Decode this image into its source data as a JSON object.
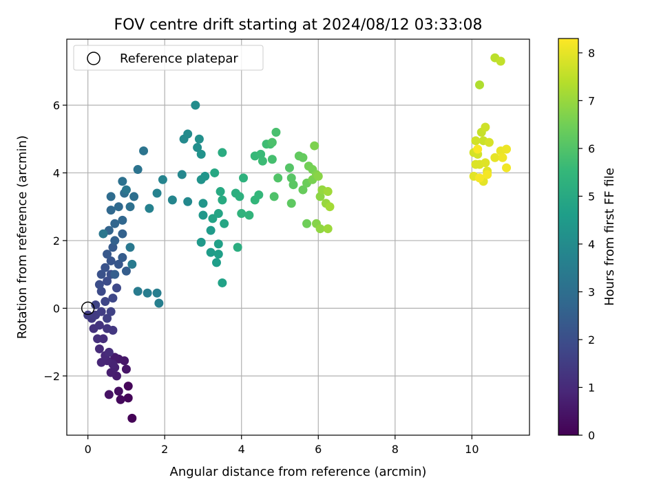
{
  "chart_data": {
    "type": "scatter",
    "title": "FOV centre drift starting at 2024/08/12 03:33:08",
    "xlabel": "Angular distance from reference (arcmin)",
    "ylabel": "Rotation from reference (arcmin)",
    "xlim": [
      -0.55,
      11.5
    ],
    "ylim": [
      -3.75,
      7.95
    ],
    "xticks": [
      0,
      2,
      4,
      6,
      8,
      10
    ],
    "yticks": [
      -2,
      0,
      2,
      4,
      6
    ],
    "xtick_labels": [
      "0",
      "2",
      "4",
      "6",
      "8",
      "10"
    ],
    "ytick_labels": [
      "−2",
      "0",
      "2",
      "4",
      "6"
    ],
    "grid": true,
    "legend": {
      "placement": "top-left",
      "entries": [
        {
          "label": "Reference platepar",
          "marker": "open-circle"
        }
      ]
    },
    "reference_point": {
      "x": 0.0,
      "y": 0.0
    },
    "colorbar": {
      "label": "Hours from first FF file",
      "colormap": "viridis",
      "range": [
        0,
        8.3
      ],
      "ticks": [
        0,
        1,
        2,
        3,
        4,
        5,
        6,
        7,
        8
      ],
      "tick_labels": [
        "0",
        "1",
        "2",
        "3",
        "4",
        "5",
        "6",
        "7",
        "8"
      ],
      "stops": [
        "#440154",
        "#482878",
        "#3e4989",
        "#31688e",
        "#26828e",
        "#1f9e89",
        "#35b779",
        "#6ece58",
        "#b5de2b",
        "#fde725"
      ]
    },
    "series": [
      {
        "marker": "filled-circle",
        "points": [
          [
            1.15,
            -3.25,
            0.05
          ],
          [
            1.05,
            -2.65,
            0.1
          ],
          [
            1.05,
            -2.3,
            0.12
          ],
          [
            0.85,
            -2.7,
            0.2
          ],
          [
            0.8,
            -2.45,
            0.3
          ],
          [
            0.55,
            -2.55,
            0.4
          ],
          [
            1.0,
            -1.8,
            0.45
          ],
          [
            0.95,
            -1.55,
            0.5
          ],
          [
            0.8,
            -1.5,
            0.55
          ],
          [
            0.7,
            -1.45,
            0.6
          ],
          [
            0.75,
            -2.0,
            0.65
          ],
          [
            0.6,
            -1.9,
            0.7
          ],
          [
            0.7,
            -1.75,
            0.75
          ],
          [
            0.65,
            -1.65,
            0.8
          ],
          [
            0.5,
            -1.55,
            0.85
          ],
          [
            0.35,
            -1.6,
            0.9
          ],
          [
            0.45,
            -1.4,
            0.95
          ],
          [
            0.3,
            -1.2,
            1.0
          ],
          [
            0.55,
            -1.3,
            1.05
          ],
          [
            0.4,
            -0.9,
            1.1
          ],
          [
            0.25,
            -0.9,
            1.15
          ],
          [
            0.15,
            -0.6,
            1.2
          ],
          [
            0.3,
            -0.5,
            1.25
          ],
          [
            0.5,
            -0.6,
            1.3
          ],
          [
            0.65,
            -0.65,
            1.35
          ],
          [
            0.1,
            -0.3,
            1.4
          ],
          [
            0.2,
            -0.2,
            1.45
          ],
          [
            0.0,
            -0.2,
            1.5
          ],
          [
            0.35,
            -0.1,
            1.55
          ],
          [
            0.5,
            -0.3,
            1.6
          ],
          [
            0.6,
            -0.1,
            1.65
          ],
          [
            0.2,
            0.1,
            1.7
          ],
          [
            0.45,
            0.2,
            1.75
          ],
          [
            0.65,
            0.3,
            1.8
          ],
          [
            0.75,
            0.6,
            1.85
          ],
          [
            0.35,
            0.5,
            1.9
          ],
          [
            0.5,
            0.8,
            1.95
          ],
          [
            0.3,
            0.7,
            2.0
          ],
          [
            0.6,
            1.0,
            2.05
          ],
          [
            0.35,
            1.0,
            2.1
          ],
          [
            0.45,
            1.2,
            2.15
          ],
          [
            0.6,
            1.4,
            2.2
          ],
          [
            0.8,
            1.3,
            2.25
          ],
          [
            0.5,
            1.6,
            2.3
          ],
          [
            0.65,
            1.8,
            2.35
          ],
          [
            0.9,
            1.5,
            2.4
          ],
          [
            1.0,
            1.1,
            2.45
          ],
          [
            0.7,
            1.0,
            2.5
          ],
          [
            0.7,
            2.0,
            2.55
          ],
          [
            0.9,
            2.2,
            2.6
          ],
          [
            0.55,
            2.3,
            2.65
          ],
          [
            0.7,
            2.5,
            2.7
          ],
          [
            0.9,
            2.6,
            2.75
          ],
          [
            0.6,
            2.9,
            2.8
          ],
          [
            0.8,
            3.0,
            2.85
          ],
          [
            0.6,
            3.3,
            2.9
          ],
          [
            0.95,
            3.4,
            2.95
          ],
          [
            1.2,
            3.3,
            3.0
          ],
          [
            1.1,
            3.0,
            3.05
          ],
          [
            0.9,
            3.75,
            3.1
          ],
          [
            1.3,
            4.1,
            3.15
          ],
          [
            1.45,
            4.65,
            3.2
          ],
          [
            1.0,
            3.5,
            3.25
          ],
          [
            0.4,
            2.2,
            3.3
          ],
          [
            1.1,
            1.8,
            3.35
          ],
          [
            1.15,
            1.3,
            3.4
          ],
          [
            1.3,
            0.5,
            3.45
          ],
          [
            1.55,
            0.45,
            3.5
          ],
          [
            1.8,
            0.45,
            3.55
          ],
          [
            1.85,
            0.15,
            3.6
          ],
          [
            1.6,
            2.95,
            3.65
          ],
          [
            1.8,
            3.4,
            3.7
          ],
          [
            1.95,
            3.8,
            3.75
          ],
          [
            2.2,
            3.2,
            3.8
          ],
          [
            2.45,
            3.95,
            3.85
          ],
          [
            2.6,
            3.15,
            3.9
          ],
          [
            2.5,
            5.0,
            3.95
          ],
          [
            2.6,
            5.15,
            4.0
          ],
          [
            2.8,
            6.0,
            4.05
          ],
          [
            2.85,
            4.75,
            4.1
          ],
          [
            2.9,
            5.0,
            4.15
          ],
          [
            2.95,
            4.55,
            4.2
          ],
          [
            2.95,
            3.8,
            4.25
          ],
          [
            3.05,
            3.9,
            4.3
          ],
          [
            3.0,
            3.1,
            4.35
          ],
          [
            3.0,
            2.75,
            4.4
          ],
          [
            2.95,
            1.95,
            4.45
          ],
          [
            3.2,
            2.3,
            4.5
          ],
          [
            3.2,
            1.65,
            4.55
          ],
          [
            3.35,
            1.35,
            4.6
          ],
          [
            3.4,
            1.6,
            4.65
          ],
          [
            3.4,
            1.9,
            4.7
          ],
          [
            3.5,
            0.75,
            4.75
          ],
          [
            3.25,
            2.65,
            4.8
          ],
          [
            3.4,
            2.8,
            4.85
          ],
          [
            3.55,
            2.5,
            4.9
          ],
          [
            3.3,
            4.0,
            4.95
          ],
          [
            3.45,
            3.45,
            5.0
          ],
          [
            3.5,
            3.2,
            5.05
          ],
          [
            3.5,
            4.6,
            5.1
          ],
          [
            3.9,
            1.8,
            5.15
          ],
          [
            3.85,
            3.4,
            5.2
          ],
          [
            3.95,
            3.3,
            5.25
          ],
          [
            4.05,
            3.85,
            5.3
          ],
          [
            4.0,
            2.8,
            5.35
          ],
          [
            4.2,
            2.75,
            5.4
          ],
          [
            4.35,
            3.2,
            5.45
          ],
          [
            4.45,
            3.35,
            5.5
          ],
          [
            4.35,
            4.5,
            5.55
          ],
          [
            4.5,
            4.55,
            5.6
          ],
          [
            4.55,
            4.35,
            5.65
          ],
          [
            4.65,
            4.85,
            5.7
          ],
          [
            4.75,
            4.85,
            5.75
          ],
          [
            4.8,
            4.4,
            5.8
          ],
          [
            4.9,
            5.2,
            5.85
          ],
          [
            4.8,
            4.9,
            5.9
          ],
          [
            4.85,
            3.3,
            5.95
          ],
          [
            4.95,
            3.85,
            6.0
          ],
          [
            5.25,
            4.15,
            6.05
          ],
          [
            5.3,
            3.85,
            6.1
          ],
          [
            5.35,
            3.65,
            6.15
          ],
          [
            5.3,
            3.1,
            6.2
          ],
          [
            5.5,
            4.5,
            6.25
          ],
          [
            5.6,
            4.45,
            6.3
          ],
          [
            5.6,
            3.5,
            6.35
          ],
          [
            5.7,
            3.7,
            6.4
          ],
          [
            5.7,
            2.5,
            6.45
          ],
          [
            5.75,
            4.2,
            6.5
          ],
          [
            5.85,
            4.1,
            6.55
          ],
          [
            5.85,
            3.8,
            6.6
          ],
          [
            5.9,
            4.8,
            6.65
          ],
          [
            5.95,
            3.95,
            6.7
          ],
          [
            5.95,
            2.5,
            6.75
          ],
          [
            6.0,
            3.9,
            6.8
          ],
          [
            6.05,
            3.3,
            6.85
          ],
          [
            6.05,
            2.35,
            6.9
          ],
          [
            6.1,
            3.5,
            6.95
          ],
          [
            6.2,
            3.1,
            7.0
          ],
          [
            6.25,
            2.35,
            7.05
          ],
          [
            6.25,
            3.45,
            7.1
          ],
          [
            6.3,
            3.0,
            7.15
          ],
          [
            10.2,
            6.6,
            7.3
          ],
          [
            10.6,
            7.4,
            7.45
          ],
          [
            10.75,
            7.3,
            7.55
          ],
          [
            10.25,
            5.2,
            7.6
          ],
          [
            10.3,
            4.95,
            7.65
          ],
          [
            10.35,
            5.35,
            7.7
          ],
          [
            10.1,
            4.95,
            7.72
          ],
          [
            10.15,
            4.55,
            7.75
          ],
          [
            10.05,
            4.6,
            7.78
          ],
          [
            10.45,
            4.9,
            7.8
          ],
          [
            10.2,
            4.25,
            7.85
          ],
          [
            10.1,
            4.25,
            7.87
          ],
          [
            10.35,
            4.3,
            7.9
          ],
          [
            10.4,
            4.05,
            7.93
          ],
          [
            10.05,
            3.9,
            7.95
          ],
          [
            10.3,
            3.75,
            7.98
          ],
          [
            10.6,
            4.45,
            8.0
          ],
          [
            10.75,
            4.65,
            8.05
          ],
          [
            10.9,
            4.7,
            8.1
          ],
          [
            10.8,
            4.45,
            8.12
          ],
          [
            10.9,
            4.15,
            8.15
          ],
          [
            10.4,
            3.95,
            8.18
          ],
          [
            10.2,
            3.85,
            8.2
          ],
          [
            10.15,
            4.7,
            8.25
          ]
        ]
      }
    ]
  }
}
